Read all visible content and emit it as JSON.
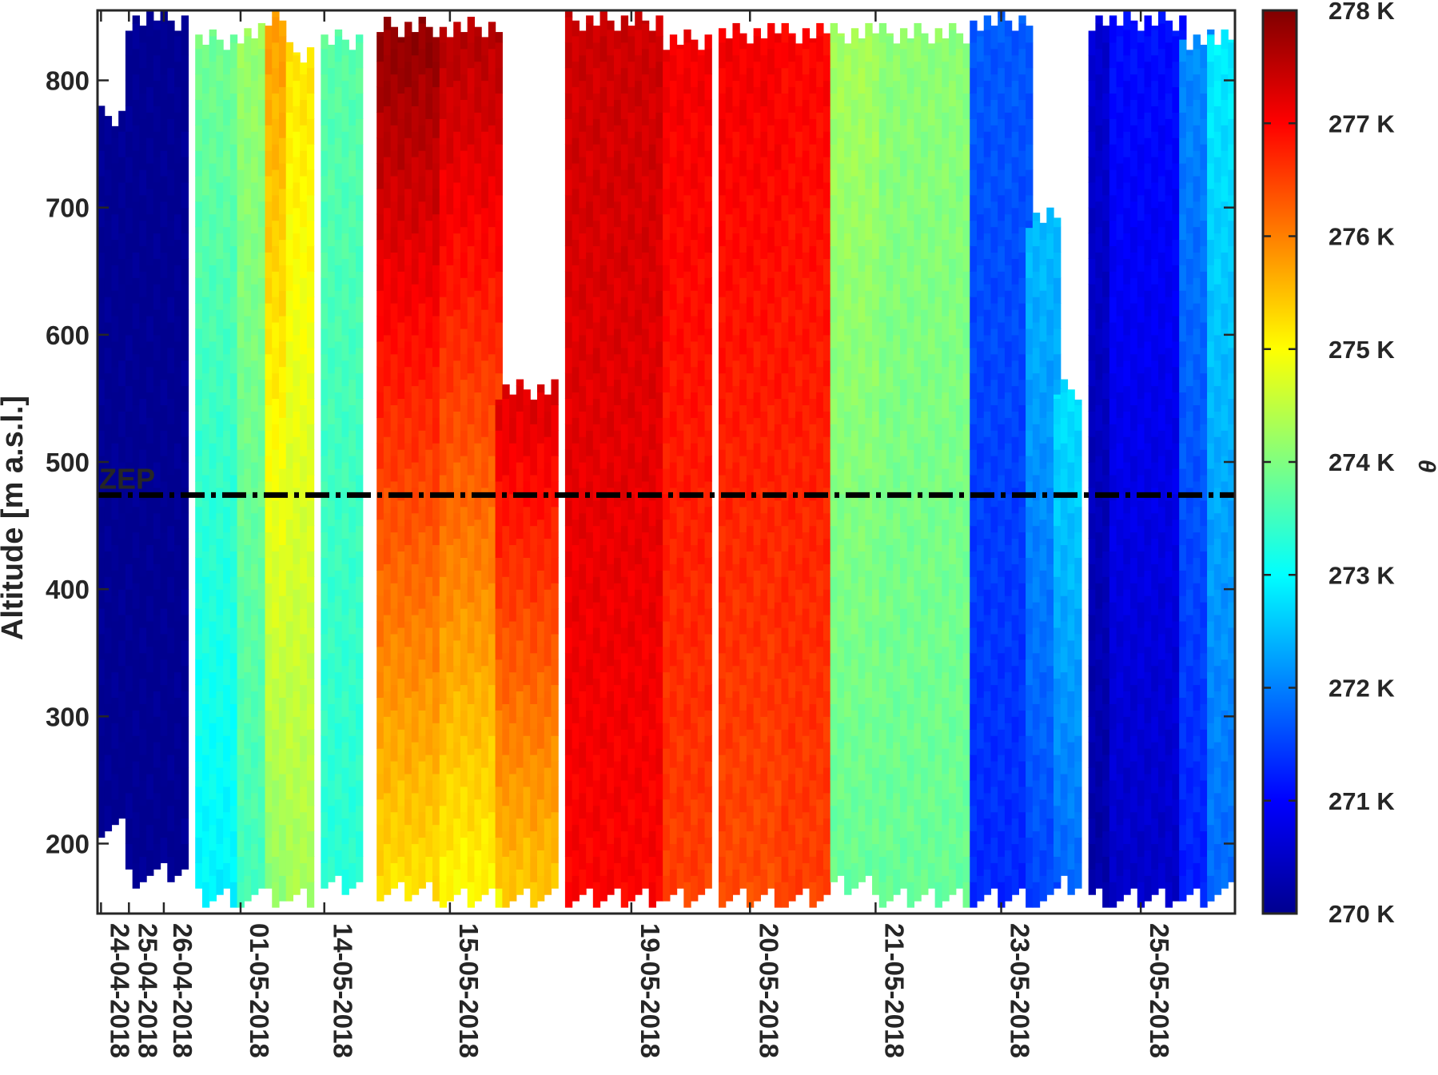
{
  "chart_data": {
    "type": "heatmap",
    "title": "",
    "xlabel": "",
    "ylabel": "Altitude [m a.s.l.]",
    "colorbar_label": "θ",
    "colormap": "jet",
    "clim": [
      270,
      278
    ],
    "ylim": [
      145,
      855
    ],
    "yticks": [
      200,
      300,
      400,
      500,
      600,
      700,
      800
    ],
    "colorbar_ticks": [
      "270 K",
      "271 K",
      "272 K",
      "273 K",
      "274 K",
      "275 K",
      "276 K",
      "277 K",
      "278 K"
    ],
    "x_axis": "profile index (one column per balloon profile, 0 to 162)",
    "x_ticks": [
      {
        "label": "24-04-2018",
        "profile": 0
      },
      {
        "label": "25-04-2018",
        "profile": 4
      },
      {
        "label": "26-04-2018",
        "profile": 9
      },
      {
        "label": "01-05-2018",
        "profile": 20
      },
      {
        "label": "14-05-2018",
        "profile": 32
      },
      {
        "label": "15-05-2018",
        "profile": 50
      },
      {
        "label": "19-05-2018",
        "profile": 76
      },
      {
        "label": "20-05-2018",
        "profile": 93
      },
      {
        "label": "21-05-2018",
        "profile": 111
      },
      {
        "label": "23-05-2018",
        "profile": 129
      },
      {
        "label": "25-05-2018",
        "profile": 149
      }
    ],
    "reference_line": {
      "label": "ZEP",
      "altitude": 474,
      "style": "dash-dot"
    },
    "blocks": [
      {
        "profile_start": 0,
        "profile_end": 3,
        "alt_min": 205,
        "alt_max": 780,
        "theta_bottom": 270.0,
        "theta_top": 270.0
      },
      {
        "profile_start": 4,
        "profile_end": 8,
        "alt_min": 165,
        "alt_max": 855,
        "theta_bottom": 270.0,
        "theta_top": 270.0
      },
      {
        "profile_start": 9,
        "profile_end": 12,
        "alt_min": 170,
        "alt_max": 855,
        "theta_bottom": 270.0,
        "theta_top": 270.0
      },
      {
        "profile_start": 14,
        "profile_end": 19,
        "alt_min": 150,
        "alt_max": 840,
        "theta_bottom": 272.9,
        "theta_top": 273.9
      },
      {
        "profile_start": 20,
        "profile_end": 23,
        "alt_min": 150,
        "alt_max": 845,
        "theta_bottom": 273.5,
        "theta_top": 274.2
      },
      {
        "profile_start": 24,
        "profile_end": 26,
        "alt_min": 150,
        "alt_max": 855,
        "theta_bottom": 274.1,
        "theta_top": 275.8
      },
      {
        "profile_start": 27,
        "profile_end": 30,
        "alt_min": 150,
        "alt_max": 830,
        "theta_bottom": 274.3,
        "theta_top": 275.2
      },
      {
        "profile_start": 32,
        "profile_end": 37,
        "alt_min": 160,
        "alt_max": 840,
        "theta_bottom": 273.3,
        "theta_top": 273.7
      },
      {
        "profile_start": 40,
        "profile_end": 48,
        "alt_min": 155,
        "alt_max": 850,
        "theta_bottom": 275.2,
        "theta_top": 277.9
      },
      {
        "profile_start": 49,
        "profile_end": 57,
        "alt_min": 150,
        "alt_max": 850,
        "theta_bottom": 275.0,
        "theta_top": 277.6
      },
      {
        "profile_start": 57,
        "profile_end": 65,
        "alt_min": 150,
        "alt_max": 565,
        "theta_bottom": 275.4,
        "theta_top": 277.3
      },
      {
        "profile_start": 67,
        "profile_end": 80,
        "alt_min": 150,
        "alt_max": 855,
        "theta_bottom": 277.0,
        "theta_top": 277.4
      },
      {
        "profile_start": 81,
        "profile_end": 87,
        "alt_min": 150,
        "alt_max": 840,
        "theta_bottom": 276.5,
        "theta_top": 277.1
      },
      {
        "profile_start": 89,
        "profile_end": 98,
        "alt_min": 150,
        "alt_max": 845,
        "theta_bottom": 276.4,
        "theta_top": 277.1
      },
      {
        "profile_start": 98,
        "profile_end": 104,
        "alt_min": 150,
        "alt_max": 845,
        "theta_bottom": 276.5,
        "theta_top": 277.0
      },
      {
        "profile_start": 105,
        "profile_end": 112,
        "alt_min": 160,
        "alt_max": 845,
        "theta_bottom": 273.8,
        "theta_top": 274.3
      },
      {
        "profile_start": 112,
        "profile_end": 124,
        "alt_min": 150,
        "alt_max": 845,
        "theta_bottom": 273.8,
        "theta_top": 274.1
      },
      {
        "profile_start": 125,
        "profile_end": 133,
        "alt_min": 150,
        "alt_max": 855,
        "theta_bottom": 271.3,
        "theta_top": 271.7
      },
      {
        "profile_start": 133,
        "profile_end": 137,
        "alt_min": 150,
        "alt_max": 700,
        "theta_bottom": 271.5,
        "theta_top": 272.5
      },
      {
        "profile_start": 137,
        "profile_end": 140,
        "alt_min": 160,
        "alt_max": 565,
        "theta_bottom": 271.8,
        "theta_top": 272.8
      },
      {
        "profile_start": 142,
        "profile_end": 144,
        "alt_min": 150,
        "alt_max": 855,
        "theta_bottom": 270.2,
        "theta_top": 270.6
      },
      {
        "profile_start": 145,
        "profile_end": 155,
        "alt_min": 150,
        "alt_max": 855,
        "theta_bottom": 270.5,
        "theta_top": 271.1
      },
      {
        "profile_start": 155,
        "profile_end": 159,
        "alt_min": 150,
        "alt_max": 840,
        "theta_bottom": 271.2,
        "theta_top": 272.1
      },
      {
        "profile_start": 159,
        "profile_end": 162,
        "alt_min": 155,
        "alt_max": 840,
        "theta_bottom": 271.8,
        "theta_top": 272.9
      }
    ]
  }
}
